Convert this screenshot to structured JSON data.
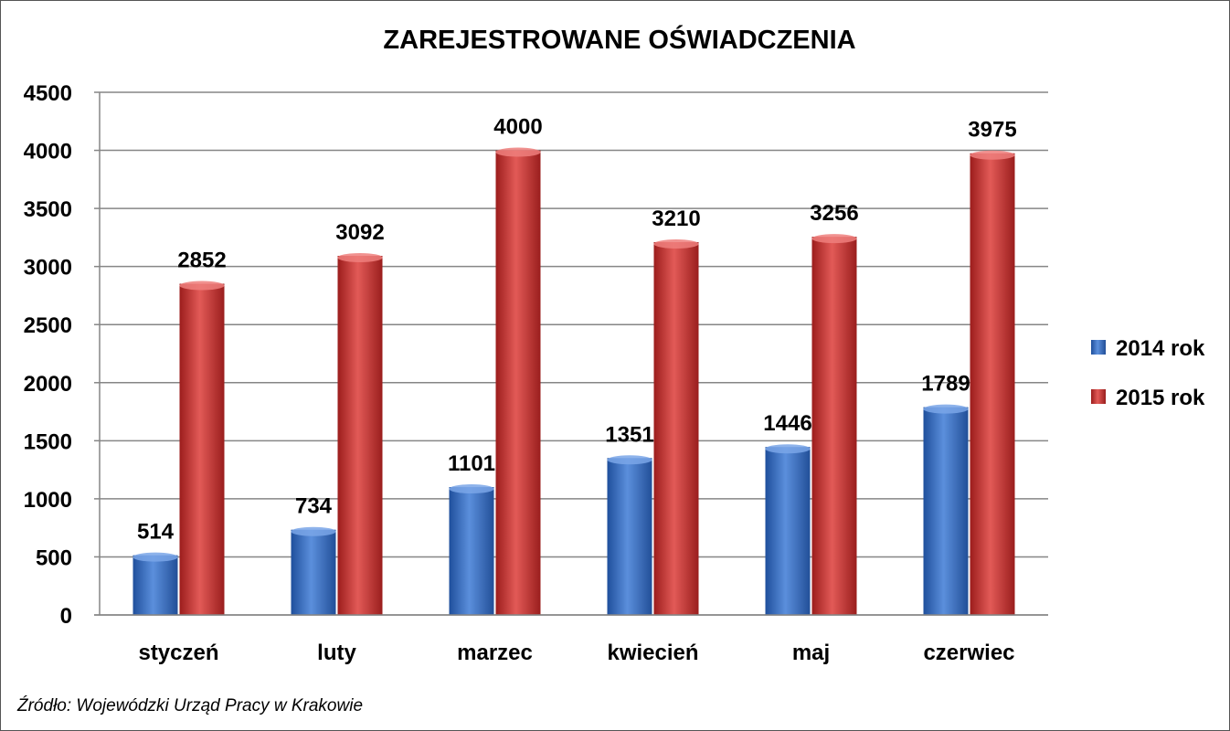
{
  "chart_data": {
    "type": "bar",
    "title": "ZAREJESTROWANE OŚWIADCZENIA",
    "categories": [
      "styczeń",
      "luty",
      "marzec",
      "kwiecień",
      "maj",
      "czerwiec"
    ],
    "series": [
      {
        "name": "2014 rok",
        "values": [
          514,
          734,
          1101,
          1351,
          1446,
          1789
        ],
        "color": "#3a6fc4"
      },
      {
        "name": "2015 rok",
        "values": [
          2852,
          3092,
          4000,
          3210,
          3256,
          3975
        ],
        "color": "#c8302f"
      }
    ],
    "ylim": [
      0,
      4500
    ],
    "yticks": [
      0,
      500,
      1000,
      1500,
      2000,
      2500,
      3000,
      3500,
      4000,
      4500
    ],
    "grid": true,
    "legend": "right",
    "xlabel": "",
    "ylabel": ""
  },
  "source_note": "Źródło: Wojewódzki Urząd Pracy w Krakowie"
}
